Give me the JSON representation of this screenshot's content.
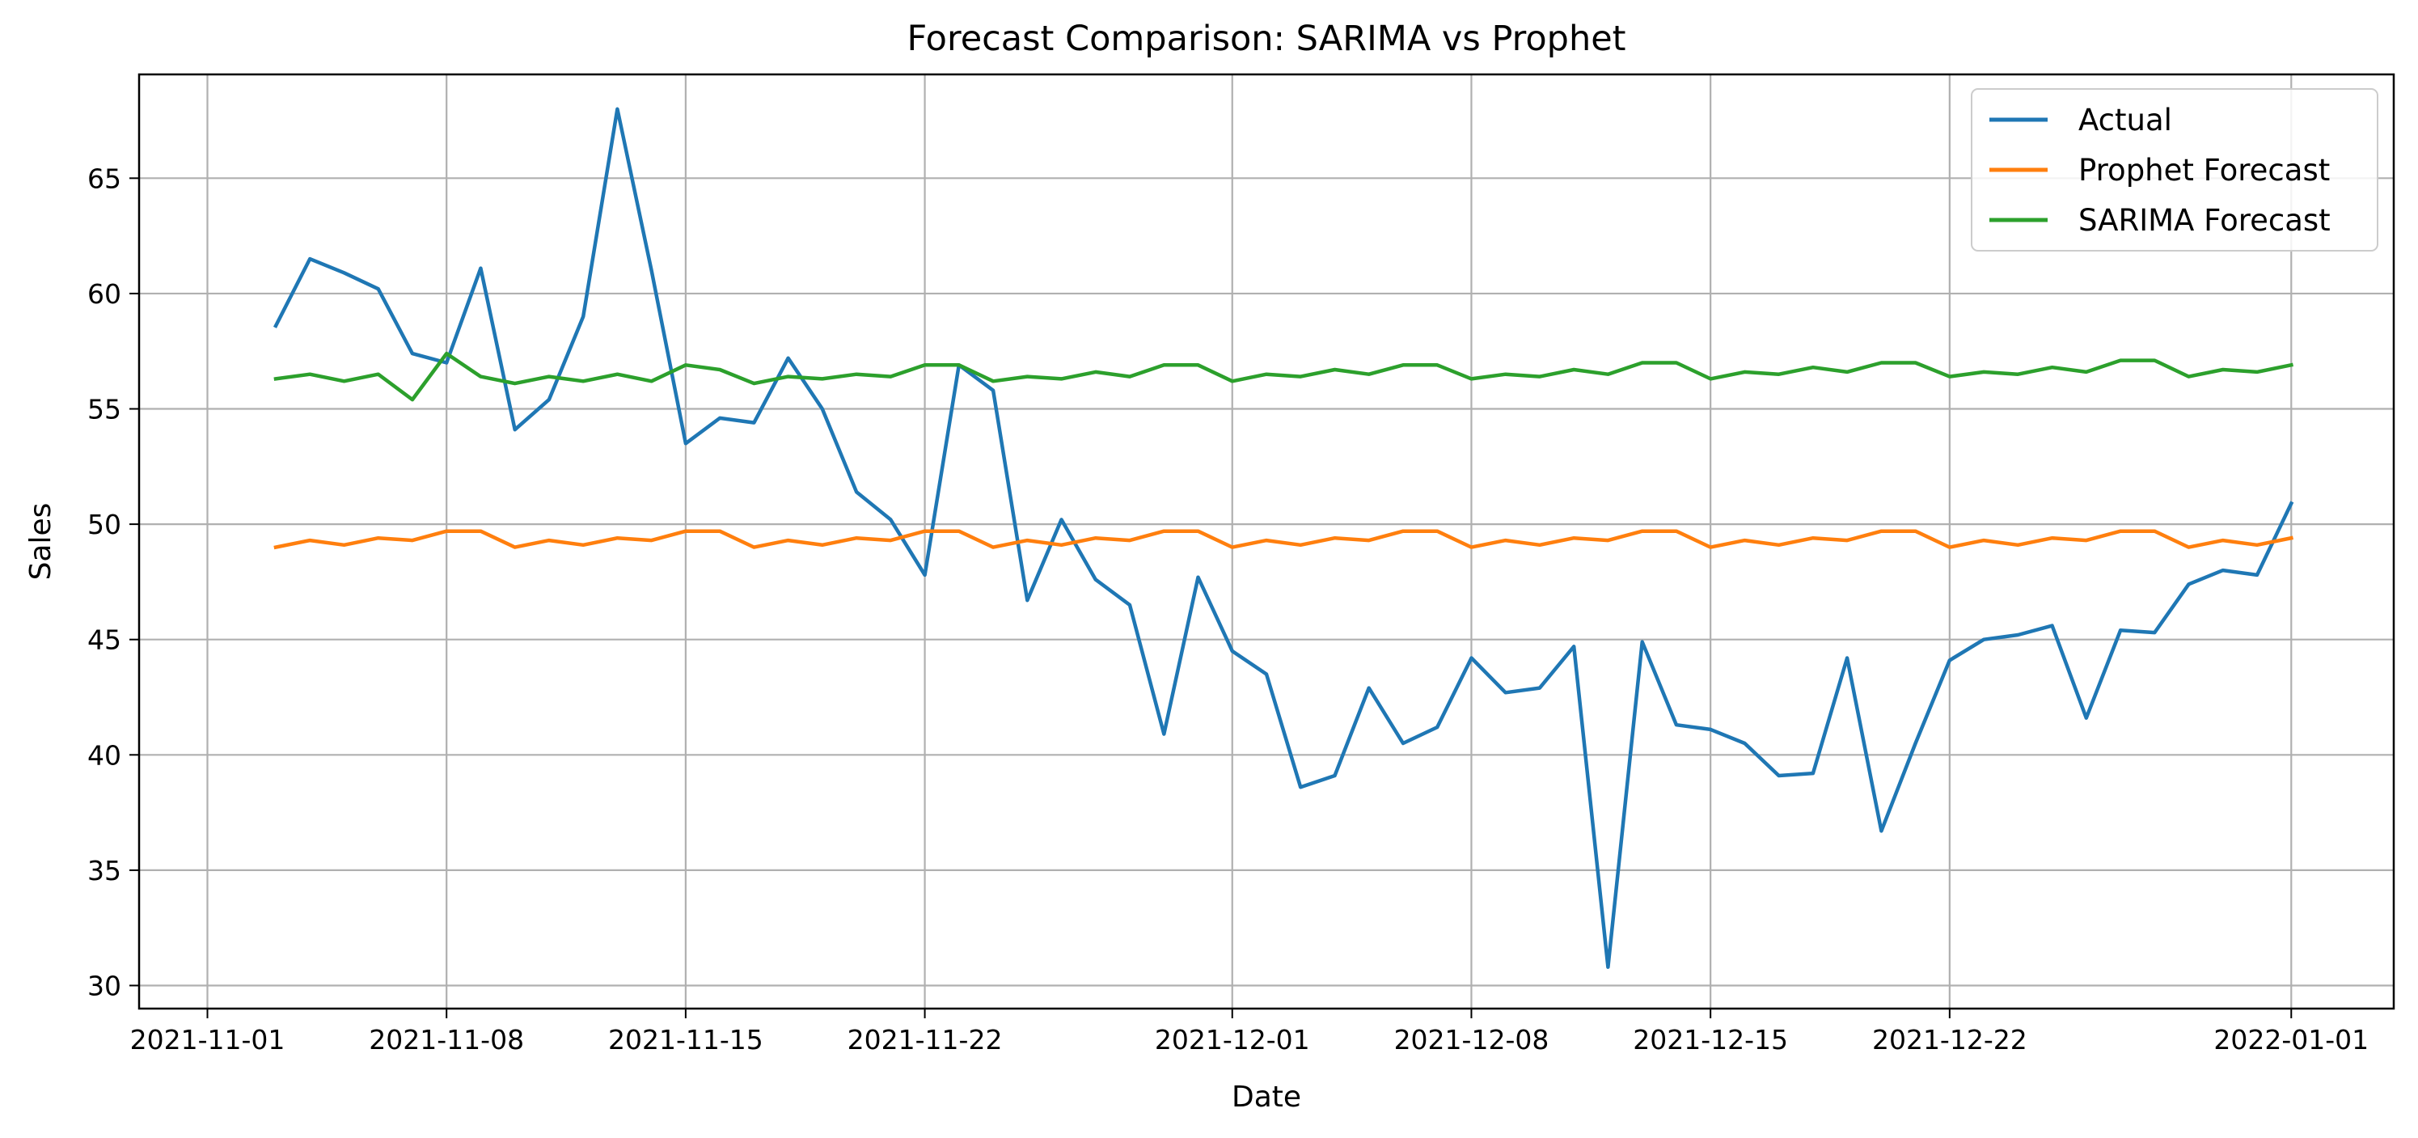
{
  "chart_data": {
    "type": "line",
    "title": "Forecast Comparison: SARIMA vs Prophet",
    "xlabel": "Date",
    "ylabel": "Sales",
    "ylim": [
      29,
      69.5
    ],
    "xlim": [
      "2021-10-30",
      "2022-01-04"
    ],
    "x_ticks": [
      "2021-11-01",
      "2021-11-08",
      "2021-11-15",
      "2021-11-22",
      "2021-12-01",
      "2021-12-08",
      "2021-12-15",
      "2021-12-22",
      "2022-01-01"
    ],
    "y_ticks": [
      30,
      35,
      40,
      45,
      50,
      55,
      60,
      65
    ],
    "grid": true,
    "legend_position": "top-right",
    "x": [
      "2021-11-03",
      "2021-11-04",
      "2021-11-05",
      "2021-11-06",
      "2021-11-07",
      "2021-11-08",
      "2021-11-09",
      "2021-11-10",
      "2021-11-11",
      "2021-11-12",
      "2021-11-13",
      "2021-11-14",
      "2021-11-15",
      "2021-11-16",
      "2021-11-17",
      "2021-11-18",
      "2021-11-19",
      "2021-11-20",
      "2021-11-21",
      "2021-11-22",
      "2021-11-23",
      "2021-11-24",
      "2021-11-25",
      "2021-11-26",
      "2021-11-27",
      "2021-11-28",
      "2021-11-29",
      "2021-11-30",
      "2021-12-01",
      "2021-12-02",
      "2021-12-03",
      "2021-12-04",
      "2021-12-05",
      "2021-12-06",
      "2021-12-07",
      "2021-12-08",
      "2021-12-09",
      "2021-12-10",
      "2021-12-11",
      "2021-12-12",
      "2021-12-13",
      "2021-12-14",
      "2021-12-15",
      "2021-12-16",
      "2021-12-17",
      "2021-12-18",
      "2021-12-19",
      "2021-12-20",
      "2021-12-21",
      "2021-12-22",
      "2021-12-23",
      "2021-12-24",
      "2021-12-25",
      "2021-12-26",
      "2021-12-27",
      "2021-12-28",
      "2021-12-29",
      "2021-12-30",
      "2021-12-31",
      "2022-01-01"
    ],
    "series": [
      {
        "name": "Actual",
        "color": "#1f77b4",
        "values": [
          58.6,
          61.5,
          60.9,
          60.2,
          57.4,
          57.0,
          61.1,
          54.1,
          55.4,
          59.0,
          68.0,
          61.0,
          53.5,
          54.6,
          54.4,
          57.2,
          55.0,
          51.4,
          50.2,
          47.8,
          56.9,
          55.8,
          46.7,
          50.2,
          47.6,
          46.5,
          40.9,
          47.7,
          44.5,
          43.5,
          38.6,
          39.1,
          42.9,
          40.5,
          41.2,
          44.2,
          42.7,
          42.9,
          44.7,
          30.8,
          44.9,
          41.3,
          41.1,
          40.5,
          39.1,
          39.2,
          44.2,
          36.7,
          40.5,
          44.1,
          45.0,
          45.2,
          45.6,
          41.6,
          45.4,
          45.3,
          47.4,
          48.0,
          47.8,
          50.9
        ]
      },
      {
        "name": "Prophet Forecast",
        "color": "#ff7f0e",
        "values": [
          49.0,
          49.3,
          49.1,
          49.4,
          49.3,
          49.7,
          49.7,
          49.0,
          49.3,
          49.1,
          49.4,
          49.3,
          49.7,
          49.7,
          49.0,
          49.3,
          49.1,
          49.4,
          49.3,
          49.7,
          49.7,
          49.0,
          49.3,
          49.1,
          49.4,
          49.3,
          49.7,
          49.7,
          49.0,
          49.3,
          49.1,
          49.4,
          49.3,
          49.7,
          49.7,
          49.0,
          49.3,
          49.1,
          49.4,
          49.3,
          49.7,
          49.7,
          49.0,
          49.3,
          49.1,
          49.4,
          49.3,
          49.7,
          49.7,
          49.0,
          49.3,
          49.1,
          49.4,
          49.3,
          49.7,
          49.7,
          49.0,
          49.3,
          49.1,
          49.4
        ]
      },
      {
        "name": "SARIMA Forecast",
        "color": "#2ca02c",
        "values": [
          56.3,
          56.5,
          56.2,
          56.5,
          55.4,
          57.4,
          56.4,
          56.1,
          56.4,
          56.2,
          56.5,
          56.2,
          56.9,
          56.7,
          56.1,
          56.4,
          56.3,
          56.5,
          56.4,
          56.9,
          56.9,
          56.2,
          56.4,
          56.3,
          56.6,
          56.4,
          56.9,
          56.9,
          56.2,
          56.5,
          56.4,
          56.7,
          56.5,
          56.9,
          56.9,
          56.3,
          56.5,
          56.4,
          56.7,
          56.5,
          57.0,
          57.0,
          56.3,
          56.6,
          56.5,
          56.8,
          56.6,
          57.0,
          57.0,
          56.4,
          56.6,
          56.5,
          56.8,
          56.6,
          57.1,
          57.1,
          56.4,
          56.7,
          56.6,
          56.9
        ]
      }
    ]
  }
}
